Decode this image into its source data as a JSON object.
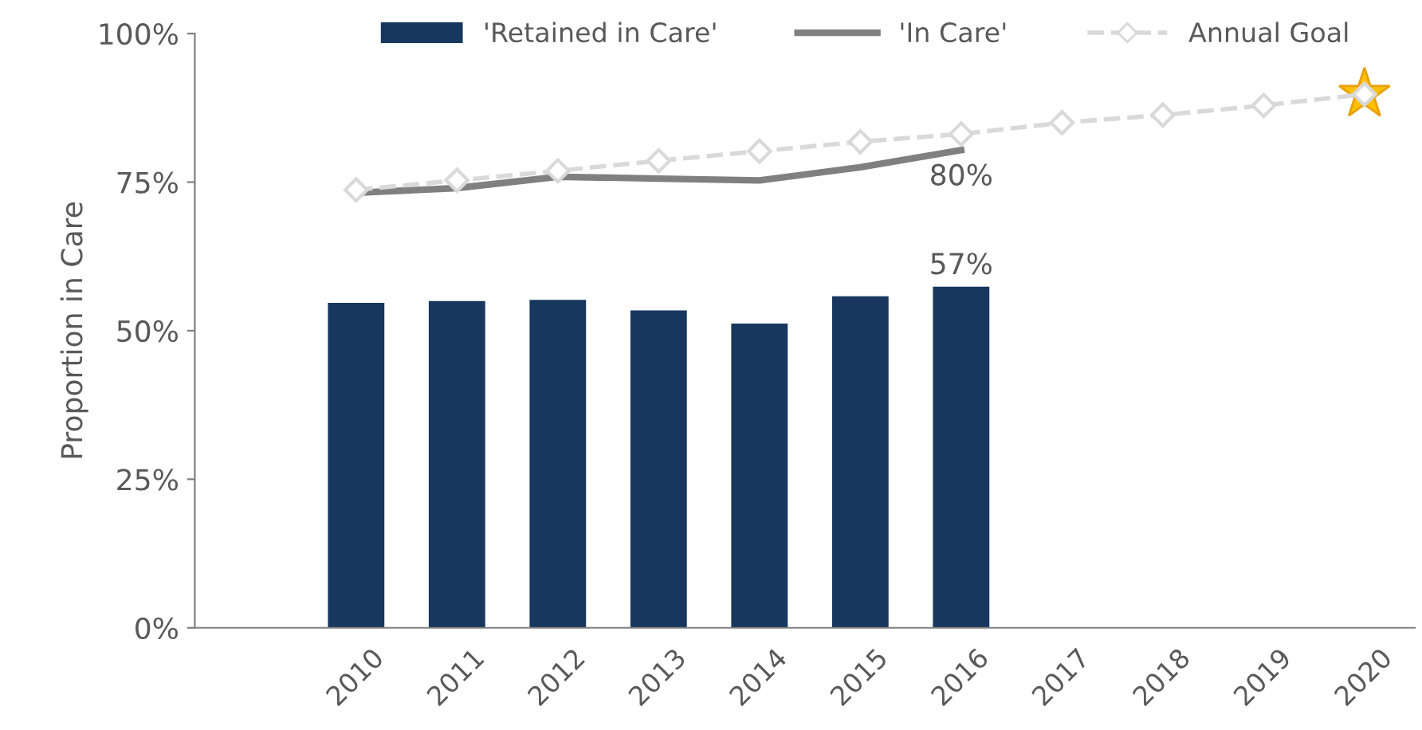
{
  "chart_data": {
    "type": "bar",
    "ylabel": "Proportion in Care",
    "categories": [
      "2010",
      "2011",
      "2012",
      "2013",
      "2014",
      "2015",
      "2016",
      "2017",
      "2018",
      "2019",
      "2020"
    ],
    "series": [
      {
        "name": "'Retained in Care'",
        "color": "#17375e",
        "values": [
          54.7,
          55.0,
          55.2,
          53.4,
          51.2,
          55.8,
          57.4,
          null,
          null,
          null,
          null
        ],
        "value_labels": [
          null,
          null,
          null,
          null,
          null,
          null,
          "57%",
          null,
          null,
          null,
          null
        ]
      },
      {
        "name": "'In Care'",
        "type": "line",
        "color": "#808080",
        "line_style": "solid",
        "marker": "none",
        "values": [
          73.2,
          74.0,
          75.9,
          75.6,
          75.3,
          77.5,
          80.4,
          null,
          null,
          null,
          null
        ],
        "value_labels": [
          null,
          null,
          null,
          null,
          null,
          null,
          "80%",
          null,
          null,
          null,
          null
        ]
      },
      {
        "name": "Annual Goal",
        "type": "line",
        "color": "#d9d9d9",
        "line_style": "dashed",
        "marker": "diamond",
        "values": [
          73.7,
          75.3,
          76.9,
          78.6,
          80.2,
          81.8,
          83.1,
          85.0,
          86.3,
          87.9,
          89.8
        ]
      }
    ],
    "ylim": [
      0,
      100
    ],
    "yticks": [
      {
        "value": 0,
        "label": "0%"
      },
      {
        "value": 25,
        "label": "25%"
      },
      {
        "value": 50,
        "label": "50%"
      },
      {
        "value": 75,
        "label": "75%"
      },
      {
        "value": 100,
        "label": "100%"
      }
    ],
    "grid": false,
    "legend": "top"
  }
}
